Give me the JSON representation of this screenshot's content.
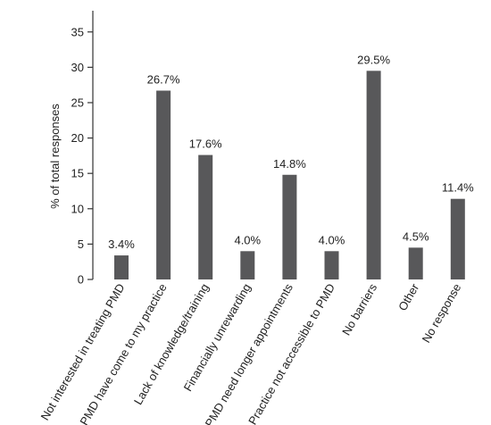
{
  "chart_data": {
    "type": "bar",
    "title": "",
    "xlabel": "",
    "ylabel": "% of total responses",
    "ylim": [
      0,
      38
    ],
    "yticks": [
      0,
      5,
      10,
      15,
      20,
      25,
      30,
      35
    ],
    "grid": false,
    "legend": "none",
    "bar_color": "#58585a",
    "categories": [
      "Not interested in treating PMD",
      "No PMD have come to my practice",
      "Lack of knowledge/training",
      "Financially unrewarding",
      "PMD need longer appointments",
      "Practice not accessible to PMD",
      "No barriers",
      "Other",
      "No response"
    ],
    "values": [
      3.4,
      26.7,
      17.6,
      4.0,
      14.8,
      4.0,
      29.5,
      4.5,
      11.4
    ],
    "data_labels": [
      "3.4%",
      "26.7%",
      "17.6%",
      "4.0%",
      "14.8%",
      "4.0%",
      "29.5%",
      "4.5%",
      "11.4%"
    ]
  }
}
